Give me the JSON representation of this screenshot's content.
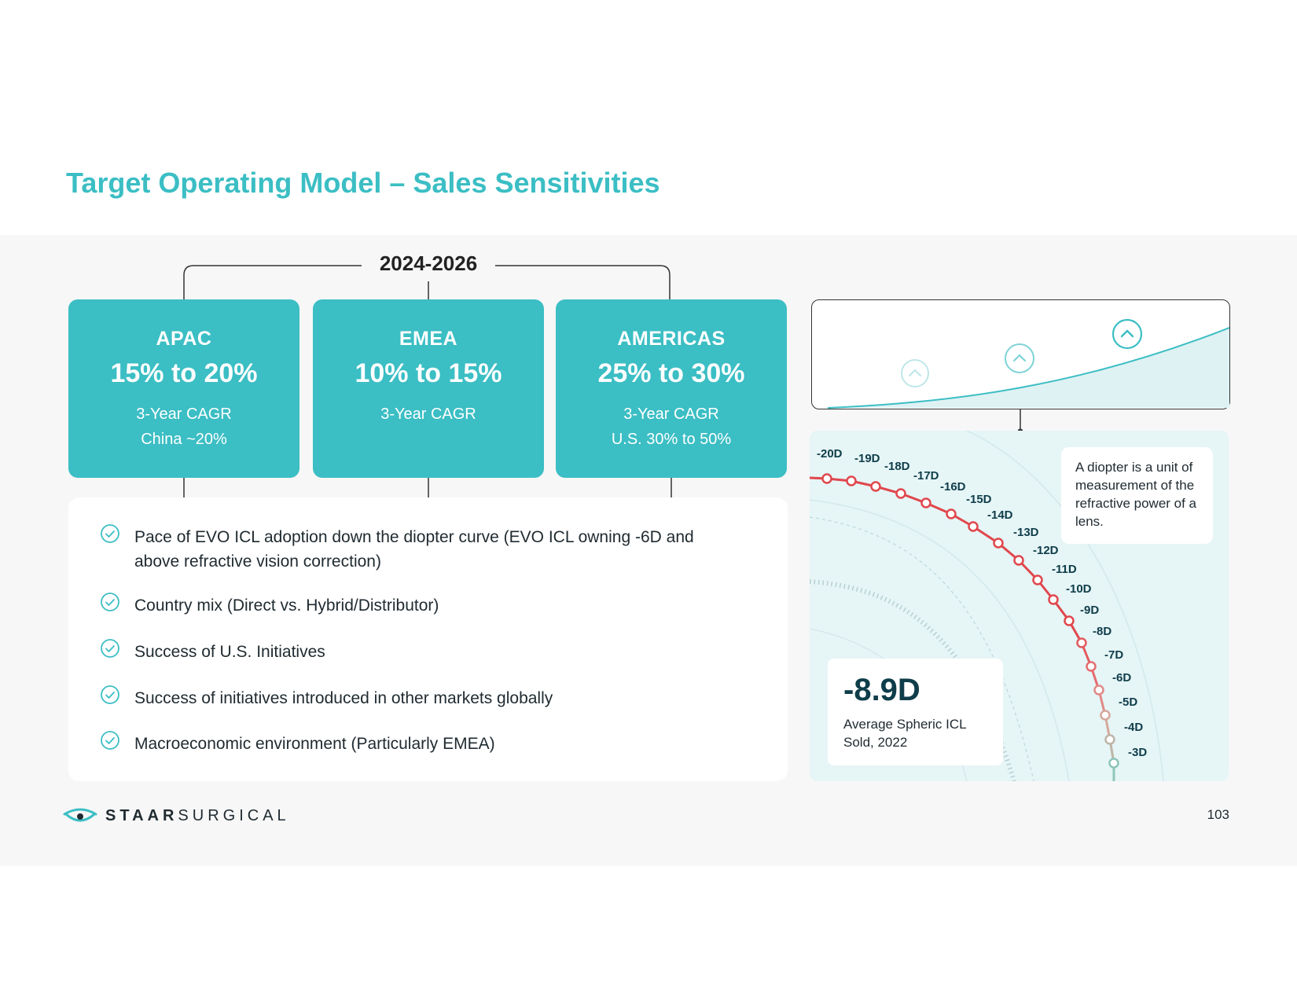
{
  "title": "Target Operating Model – Sales Sensitivities",
  "period": "2024-2026",
  "regions": [
    {
      "name": "APAC",
      "range": "15% to 20%",
      "line1": "3-Year CAGR",
      "line2": "China ~20%"
    },
    {
      "name": "EMEA",
      "range": "10% to 15%",
      "line1": "3-Year CAGR",
      "line2": ""
    },
    {
      "name": "AMERICAS",
      "range": "25% to 30%",
      "line1": "3-Year CAGR",
      "line2": "U.S. 30% to 50%"
    }
  ],
  "sensitivities": [
    "Pace of EVO ICL adoption down the diopter curve (EVO ICL owning -6D and above refractive vision correction)",
    "Country mix (Direct vs. Hybrid/Distributor)",
    "Success of U.S. Initiatives",
    "Success of initiatives introduced in other markets globally",
    "Macroeconomic environment (Particularly EMEA)"
  ],
  "diopter_note": "A diopter is a unit of measurement of the refractive power of a lens.",
  "diopter_labels": [
    "-20D",
    "-19D",
    "-18D",
    "-17D",
    "-16D",
    "-15D",
    "-14D",
    "-13D",
    "-12D",
    "-11D",
    "-10D",
    "-9D",
    "-8D",
    "-7D",
    "-6D",
    "-5D",
    "-4D",
    "-3D"
  ],
  "average": {
    "value": "-8.9D",
    "caption": "Average Spheric ICL Sold, 2022"
  },
  "logo": {
    "bold": "STAAR",
    "light": "SURGICAL"
  },
  "page_number": "103",
  "colors": {
    "accent": "#3bbec4",
    "curve_red": "#e0474c",
    "dark_teal": "#0f3d4a"
  }
}
